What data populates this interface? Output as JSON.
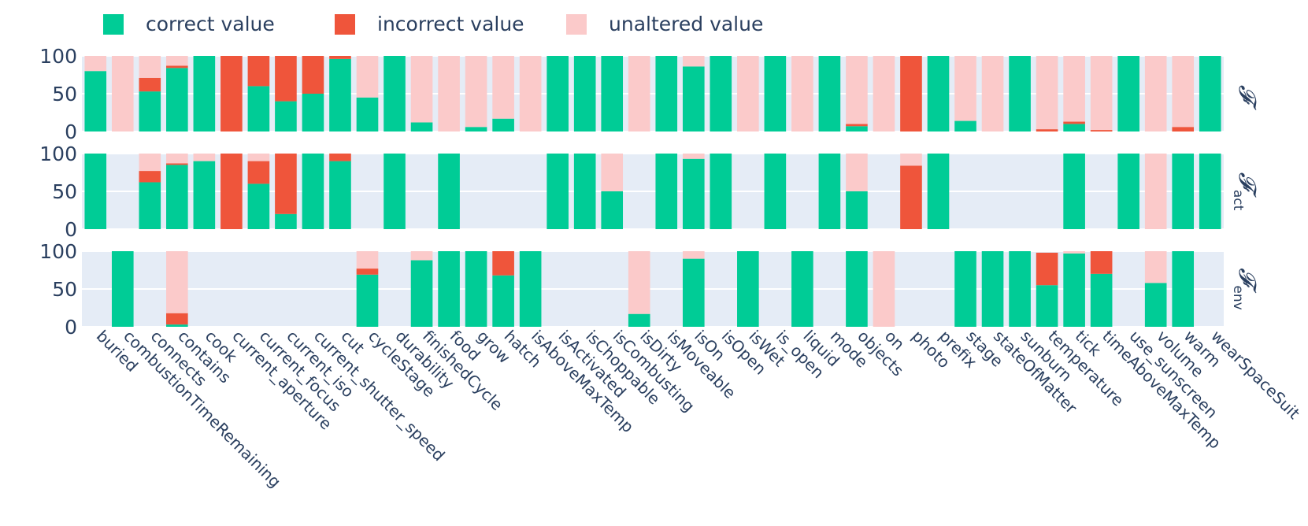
{
  "chart_data": {
    "type": "bar",
    "barmode": "stack",
    "legend": {
      "placement": "top-left",
      "entries": [
        {
          "key": "correct",
          "label": "correct value",
          "color": "#00cc96"
        },
        {
          "key": "incorrect",
          "label": "incorrect value",
          "color": "#ef553b"
        },
        {
          "key": "unaltered",
          "label": "unaltered value",
          "color": "#fbcaca"
        }
      ]
    },
    "plot_background": "#e5ecf6",
    "ylim": [
      0,
      100
    ],
    "yticks": [
      0,
      50,
      100
    ],
    "categories": [
      "buried",
      "combustionTimeRemaining",
      "connects",
      "contains",
      "cook",
      "current_aperture",
      "current_focus",
      "current_iso",
      "current_shutter_speed",
      "cut",
      "cycleStage",
      "durability",
      "finishedCycle",
      "food",
      "grow",
      "hatch",
      "isAboveMaxTemp",
      "isActivated",
      "isChoppable",
      "isCombusting",
      "isDirty",
      "isMoveable",
      "isOn",
      "isOpen",
      "isWet",
      "is_open",
      "liquid",
      "mode",
      "objects",
      "on",
      "photo",
      "prefix",
      "stage",
      "stateOfMatter",
      "sunburn",
      "temperature",
      "tick",
      "timeAboveMaxTemp",
      "use_sunscreen",
      "volume",
      "warm",
      "wearSpaceSuit"
    ],
    "panels": [
      {
        "label": "𝓕",
        "subscript": "",
        "series": {
          "correct": [
            80,
            0,
            53,
            84,
            100,
            0,
            60,
            40,
            50,
            96,
            45,
            100,
            12,
            0,
            6,
            17,
            0,
            100,
            100,
            100,
            0,
            100,
            86,
            100,
            0,
            100,
            0,
            100,
            7,
            0,
            0,
            100,
            14,
            0,
            100,
            0,
            10,
            0,
            100,
            0,
            0,
            100
          ],
          "incorrect": [
            0,
            0,
            18,
            3,
            0,
            100,
            40,
            60,
            50,
            4,
            0,
            0,
            0,
            0,
            0,
            0,
            0,
            0,
            0,
            0,
            0,
            0,
            0,
            0,
            0,
            0,
            0,
            0,
            3,
            0,
            100,
            0,
            0,
            0,
            0,
            3,
            3,
            2,
            0,
            0,
            6,
            0
          ],
          "unaltered": [
            20,
            100,
            29,
            13,
            0,
            0,
            0,
            0,
            0,
            0,
            55,
            0,
            88,
            100,
            94,
            83,
            100,
            0,
            0,
            0,
            100,
            0,
            14,
            0,
            100,
            0,
            100,
            0,
            90,
            100,
            0,
            0,
            86,
            100,
            0,
            97,
            87,
            98,
            0,
            100,
            94,
            0
          ]
        }
      },
      {
        "label": "𝓕",
        "subscript": "act",
        "series": {
          "correct": [
            100,
            0,
            62,
            85,
            90,
            0,
            60,
            20,
            100,
            90,
            0,
            100,
            0,
            100,
            0,
            0,
            0,
            100,
            100,
            50,
            0,
            100,
            93,
            100,
            0,
            100,
            0,
            100,
            50,
            0,
            0,
            100,
            0,
            0,
            0,
            0,
            100,
            0,
            100,
            0,
            100,
            100
          ],
          "incorrect": [
            0,
            0,
            15,
            2,
            0,
            100,
            30,
            80,
            0,
            10,
            0,
            0,
            0,
            0,
            0,
            0,
            0,
            0,
            0,
            0,
            0,
            0,
            0,
            0,
            0,
            0,
            0,
            0,
            0,
            0,
            84,
            0,
            0,
            0,
            0,
            0,
            0,
            0,
            0,
            0,
            0,
            0
          ],
          "unaltered": [
            0,
            0,
            23,
            13,
            10,
            0,
            10,
            0,
            0,
            0,
            0,
            0,
            0,
            0,
            0,
            0,
            0,
            0,
            0,
            50,
            0,
            0,
            7,
            0,
            0,
            0,
            0,
            0,
            50,
            0,
            16,
            0,
            0,
            0,
            0,
            0,
            0,
            0,
            0,
            100,
            0,
            0
          ]
        }
      },
      {
        "label": "𝓕",
        "subscript": "env",
        "series": {
          "correct": [
            0,
            100,
            0,
            3,
            0,
            0,
            0,
            0,
            0,
            0,
            69,
            0,
            88,
            100,
            100,
            68,
            100,
            0,
            0,
            0,
            17,
            0,
            90,
            0,
            100,
            0,
            100,
            0,
            100,
            0,
            0,
            0,
            100,
            100,
            100,
            55,
            97,
            70,
            0,
            58,
            100,
            0
          ],
          "incorrect": [
            0,
            0,
            0,
            15,
            0,
            0,
            0,
            0,
            0,
            0,
            8,
            0,
            0,
            0,
            0,
            32,
            0,
            0,
            0,
            0,
            0,
            0,
            0,
            0,
            0,
            0,
            0,
            0,
            0,
            0,
            0,
            0,
            0,
            0,
            0,
            43,
            0,
            30,
            0,
            0,
            0,
            0
          ],
          "unaltered": [
            0,
            0,
            0,
            82,
            0,
            0,
            0,
            0,
            0,
            0,
            23,
            0,
            12,
            0,
            0,
            0,
            0,
            0,
            0,
            0,
            83,
            0,
            10,
            0,
            0,
            0,
            0,
            0,
            0,
            100,
            0,
            0,
            0,
            0,
            0,
            0,
            3,
            0,
            0,
            42,
            0,
            0
          ]
        }
      }
    ]
  }
}
